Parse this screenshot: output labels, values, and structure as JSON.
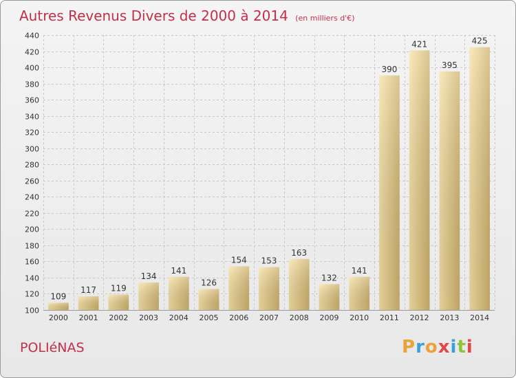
{
  "header": {
    "title": "Autres Revenus Divers de 2000 à 2014",
    "subtitle": "(en milliers d'€)"
  },
  "footer": {
    "commune": "POLIéNAS",
    "logo_text": "Proxiti",
    "logo_colors": [
      "#e8a33a",
      "#3aa0d8",
      "#e8a33a",
      "#e04848",
      "#3aa0d8",
      "#8cc43c",
      "#e04848"
    ]
  },
  "colors": {
    "title": "#c0304a",
    "bar_light": "#f5dc98",
    "bar_dark": "#c8a862",
    "grid": "#c8c8c8",
    "axis_text": "#333333"
  },
  "chart_data": {
    "type": "bar",
    "title": "Autres Revenus Divers de 2000 à 2014",
    "categories": [
      "2000",
      "2001",
      "2002",
      "2003",
      "2004",
      "2005",
      "2006",
      "2007",
      "2008",
      "2009",
      "2010",
      "2011",
      "2012",
      "2013",
      "2014"
    ],
    "values": [
      109,
      117,
      119,
      134,
      141,
      126,
      154,
      153,
      163,
      132,
      141,
      390,
      421,
      395,
      425
    ],
    "ylim": [
      100,
      440
    ],
    "yticks": [
      100,
      120,
      140,
      160,
      180,
      200,
      220,
      240,
      260,
      280,
      300,
      320,
      340,
      360,
      380,
      400,
      420,
      440
    ],
    "grid": true,
    "data_labels": true
  }
}
